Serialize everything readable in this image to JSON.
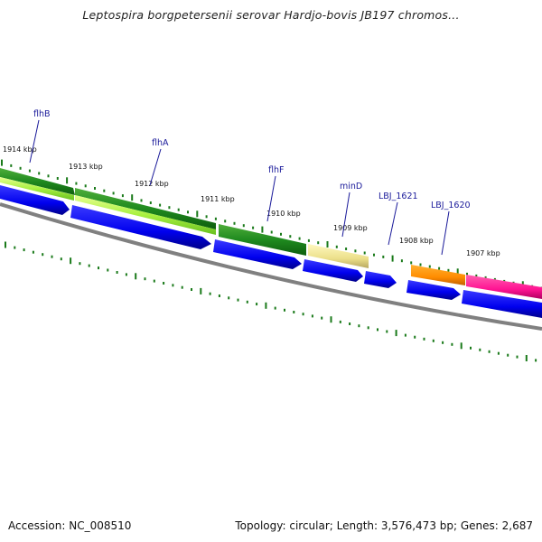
{
  "title": "Leptospira borgpetersenii serovar Hardjo-bovis JB197 chromos...",
  "footer": {
    "accession": "Accession: NC_008510",
    "summary": "Topology: circular; Length: 3,576,473 bp; Genes: 2,687"
  },
  "colors": {
    "cds": "#0000ee",
    "backbone": "#808080",
    "tick": "#1a7a1a",
    "label": "#1a1a9a"
  },
  "kbp_labels": [
    "1914 kbp",
    "1913 kbp",
    "1912 kbp",
    "1911 kbp",
    "1910 kbp",
    "1909 kbp",
    "1908 kbp",
    "1907 kbp"
  ],
  "gene_labels": [
    "flhB",
    "flhA",
    "flhF",
    "minD",
    "LBJ_1621",
    "LBJ_1620"
  ]
}
